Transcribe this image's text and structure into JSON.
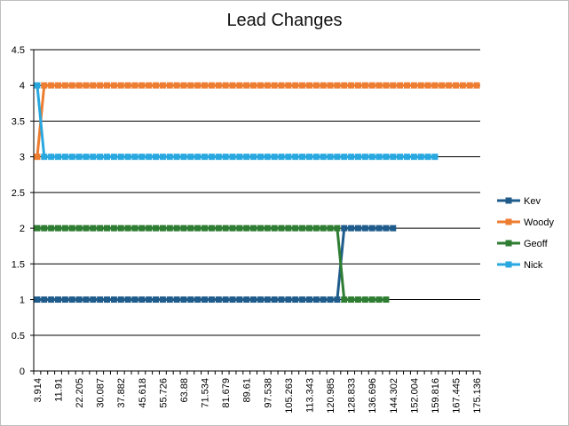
{
  "chart_data": {
    "type": "line",
    "title": "Lead Changes",
    "xlabel": "",
    "ylabel": "",
    "ylim": [
      0,
      4.5
    ],
    "yticks": [
      "0",
      "0.5",
      "1",
      "1.5",
      "2",
      "2.5",
      "3",
      "3.5",
      "4",
      "4.5"
    ],
    "xtick_labels": [
      "3.914",
      "11.91",
      "22.205",
      "30.087",
      "37.882",
      "45.618",
      "55.726",
      "63.88",
      "71.534",
      "81.679",
      "89.61",
      "97.538",
      "105.263",
      "113.343",
      "120.985",
      "128.833",
      "136.696",
      "144.302",
      "152.004",
      "159.816",
      "167.445",
      "175.136"
    ],
    "category_count": 64,
    "grid": "horizontal",
    "legend": "right",
    "series": [
      {
        "name": "Kev",
        "color": "#1f5c8b",
        "values": [
          1,
          1,
          1,
          1,
          1,
          1,
          1,
          1,
          1,
          1,
          1,
          1,
          1,
          1,
          1,
          1,
          1,
          1,
          1,
          1,
          1,
          1,
          1,
          1,
          1,
          1,
          1,
          1,
          1,
          1,
          1,
          1,
          1,
          1,
          1,
          1,
          1,
          1,
          1,
          1,
          1,
          1,
          1,
          1,
          2,
          2,
          2,
          2,
          2,
          2,
          2,
          2
        ]
      },
      {
        "name": "Woody",
        "color": "#ed7d31",
        "values": [
          3,
          4,
          4,
          4,
          4,
          4,
          4,
          4,
          4,
          4,
          4,
          4,
          4,
          4,
          4,
          4,
          4,
          4,
          4,
          4,
          4,
          4,
          4,
          4,
          4,
          4,
          4,
          4,
          4,
          4,
          4,
          4,
          4,
          4,
          4,
          4,
          4,
          4,
          4,
          4,
          4,
          4,
          4,
          4,
          4,
          4,
          4,
          4,
          4,
          4,
          4,
          4,
          4,
          4,
          4,
          4,
          4,
          4,
          4,
          4,
          4,
          4,
          4,
          4
        ]
      },
      {
        "name": "Geoff",
        "color": "#2e7d32",
        "values": [
          2,
          2,
          2,
          2,
          2,
          2,
          2,
          2,
          2,
          2,
          2,
          2,
          2,
          2,
          2,
          2,
          2,
          2,
          2,
          2,
          2,
          2,
          2,
          2,
          2,
          2,
          2,
          2,
          2,
          2,
          2,
          2,
          2,
          2,
          2,
          2,
          2,
          2,
          2,
          2,
          2,
          2,
          2,
          2,
          1,
          1,
          1,
          1,
          1,
          1,
          1
        ]
      },
      {
        "name": "Nick",
        "color": "#29a8e0",
        "values": [
          4,
          3,
          3,
          3,
          3,
          3,
          3,
          3,
          3,
          3,
          3,
          3,
          3,
          3,
          3,
          3,
          3,
          3,
          3,
          3,
          3,
          3,
          3,
          3,
          3,
          3,
          3,
          3,
          3,
          3,
          3,
          3,
          3,
          3,
          3,
          3,
          3,
          3,
          3,
          3,
          3,
          3,
          3,
          3,
          3,
          3,
          3,
          3,
          3,
          3,
          3,
          3,
          3,
          3,
          3,
          3,
          3,
          3
        ]
      }
    ]
  }
}
